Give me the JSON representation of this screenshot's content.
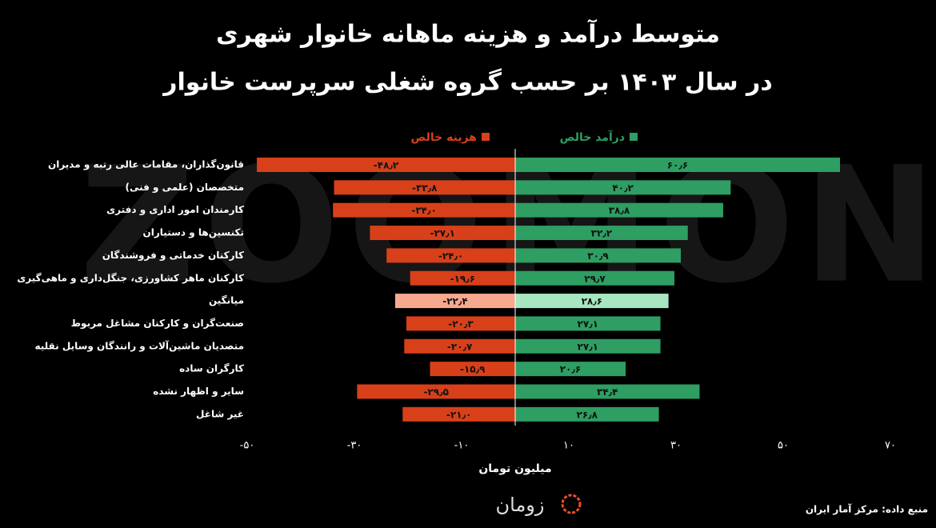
{
  "chart_data": {
    "type": "diverging_bar",
    "title": "متوسط درآمد و هزینه ماهانه خانوار شهری",
    "subtitle": "در سال ۱۴۰۳ بر حسب گروه شغلی سرپرست خانوار",
    "x_label": "میلیون تومان",
    "source": "منبع داده: مرکز آمار ایران",
    "logo": "زومان",
    "watermark": "ZOOMON",
    "categories": [
      "قانون‌گذاران، مقامات عالی رتبه و مدیران",
      "متخصصان (علمی و فنی)",
      "کارمندان امور اداری و دفتری",
      "تکنسین‌ها و دستیاران",
      "کارکنان خدماتی و فروشندگان",
      "کارکنان ماهر کشاورزی، جنگل‌داری و ماهی‌گیری",
      "میانگین",
      "صنعت‌گران و کارکنان مشاغل مربوط",
      "متصدیان ماشین‌آلات و رانندگان وسایل نقلیه",
      "کارگران ساده",
      "سایر و اظهار نشده",
      "غیر شاغل"
    ],
    "highlight_index": 6,
    "series": [
      {
        "name": "درآمد خالص",
        "color": "#2e9e63",
        "highlight_color": "#a8e6c2",
        "values": [
          60.6,
          40.2,
          38.8,
          32.2,
          30.9,
          29.7,
          28.6,
          27.1,
          27.1,
          20.6,
          34.4,
          26.8
        ],
        "value_labels": [
          "۶۰٫۶",
          "۴۰٫۲",
          "۳۸٫۸",
          "۳۲٫۲",
          "۳۰٫۹",
          "۲۹٫۷",
          "۲۸٫۶",
          "۲۷٫۱",
          "۲۷٫۱",
          "۲۰٫۶",
          "۳۴٫۴",
          "۲۶٫۸"
        ]
      },
      {
        "name": "هزینه خالص",
        "color": "#d8401a",
        "highlight_color": "#f7a98f",
        "values": [
          -48.2,
          -33.8,
          -34.0,
          -27.1,
          -24.0,
          -19.6,
          -22.4,
          -20.3,
          -20.7,
          -15.9,
          -29.5,
          -21.0
        ],
        "value_labels": [
          "-۴۸٫۲",
          "-۳۳٫۸",
          "-۳۴٫۰",
          "-۲۷٫۱",
          "-۲۴٫۰",
          "-۱۹٫۶",
          "-۲۲٫۴",
          "-۲۰٫۳",
          "-۲۰٫۷",
          "-۱۵٫۹",
          "-۲۹٫۵",
          "-۲۱٫۰"
        ]
      }
    ],
    "xlim": [
      -50,
      70
    ],
    "xticks": [
      {
        "value": -50,
        "label": "-۵۰"
      },
      {
        "value": -30,
        "label": "-۳۰"
      },
      {
        "value": -10,
        "label": "-۱۰"
      },
      {
        "value": 10,
        "label": "۱۰"
      },
      {
        "value": 30,
        "label": "۳۰"
      },
      {
        "value": 50,
        "label": "۵۰"
      },
      {
        "value": 70,
        "label": "۷۰"
      }
    ]
  }
}
